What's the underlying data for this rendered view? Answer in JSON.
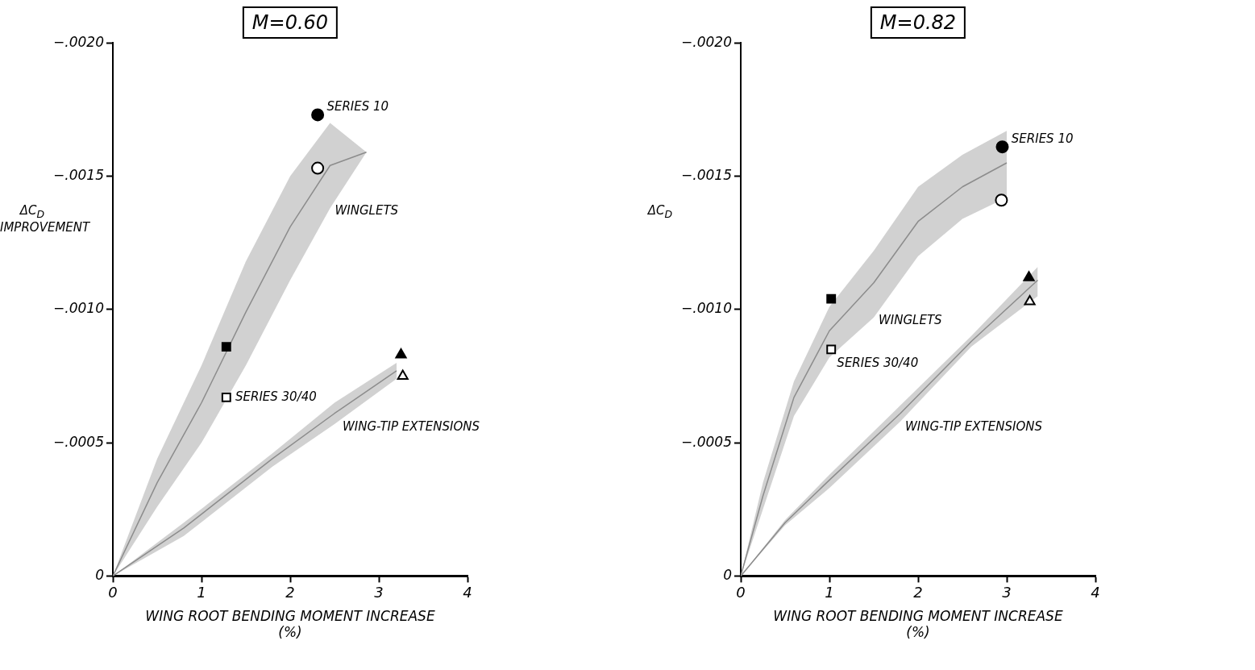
{
  "chart_data": [
    {
      "type": "scatter",
      "title": "M=0.60",
      "xlabel": "WING ROOT BENDING MOMENT INCREASE (%)",
      "ylabel": "ΔC$_{D}$ IMPROVEMENT",
      "xlim": [
        0,
        4
      ],
      "xticks": [
        0,
        1,
        2,
        3,
        4
      ],
      "ylim": [
        0,
        -0.002
      ],
      "yticks": [
        0,
        {
          "value": -0.0005,
          "label": "−.0005"
        },
        {
          "value": -0.001,
          "label": "−.0010"
        },
        {
          "value": -0.0015,
          "label": "−.0015"
        },
        {
          "value": -0.002,
          "label": "−.0020"
        }
      ],
      "grid": false,
      "legend": false,
      "series": [
        {
          "name": "WINGLETS",
          "type": "line",
          "color": "#8c8c8c",
          "x": [
            0,
            0.5,
            1,
            1.5,
            2,
            2.45,
            2.86
          ],
          "values": [
            0,
            -0.00035,
            -0.00065,
            -0.00099,
            -0.00131,
            -0.00154,
            -0.00159
          ],
          "upper": [
            0,
            -0.00044,
            -0.00079,
            -0.00118,
            -0.0015,
            -0.0017,
            -0.00159
          ],
          "lower": [
            0,
            -0.00026,
            -0.0005,
            -0.00079,
            -0.00111,
            -0.00138,
            -0.00159
          ]
        },
        {
          "name": "WING-TIP EXTENSIONS",
          "type": "line",
          "color": "#8c8c8c",
          "x": [
            0,
            0.8,
            1.8,
            2.5,
            3.2
          ],
          "values": [
            0,
            -0.00018,
            -0.00044,
            -0.00061,
            -0.00077
          ],
          "upper": [
            0,
            -0.0002,
            -0.00046,
            -0.00065,
            -0.0008
          ],
          "lower": [
            0,
            -0.00015,
            -0.00041,
            -0.00057,
            -0.00074
          ]
        },
        {
          "name": "SERIES 10",
          "type": "scatter",
          "marker": "circle",
          "color": "#000000",
          "colors": [
            "#000000",
            "#ffffff"
          ],
          "x": [
            2.31,
            2.31
          ],
          "values": [
            -0.00173,
            -0.00153
          ]
        },
        {
          "name": "SERIES 30/40",
          "type": "scatter",
          "marker": "square",
          "color": "#000000",
          "colors": [
            "#000000",
            "#ffffff"
          ],
          "x": [
            1.28,
            1.28
          ],
          "values": [
            -0.00086,
            -0.00067
          ]
        },
        {
          "type": "scatter",
          "marker": "triangle",
          "color": "#000000",
          "colors": [
            "#000000",
            "#ffffff"
          ],
          "x": [
            3.25,
            3.27
          ],
          "values": [
            -0.00083,
            -0.00075
          ]
        }
      ]
    },
    {
      "type": "scatter",
      "title": "M=0.82",
      "xlabel": "WING ROOT BENDING MOMENT INCREASE (%)",
      "ylabel": "ΔC$_{D}$",
      "xlim": [
        0,
        4
      ],
      "xticks": [
        0,
        1,
        2,
        3,
        4
      ],
      "ylim": [
        0,
        -0.002
      ],
      "yticks": [
        0,
        {
          "value": -0.0005,
          "label": "−.0005"
        },
        {
          "value": -0.001,
          "label": "−.0010"
        },
        {
          "value": -0.0015,
          "label": "−.0015"
        },
        {
          "value": -0.002,
          "label": "−.0020"
        }
      ],
      "grid": false,
      "legend": false,
      "series": [
        {
          "name": "WINGLETS",
          "type": "line",
          "color": "#8c8c8c",
          "x": [
            0,
            0.25,
            0.6,
            1,
            1.5,
            2,
            2.5,
            3
          ],
          "values": [
            0,
            -0.0003,
            -0.00067,
            -0.00092,
            -0.0011,
            -0.00133,
            -0.00146,
            -0.00155
          ],
          "upper": [
            0,
            -0.00035,
            -0.00073,
            -0.00101,
            -0.00122,
            -0.00146,
            -0.00158,
            -0.00167
          ],
          "lower": [
            0,
            -0.00025,
            -0.0006,
            -0.00082,
            -0.00097,
            -0.0012,
            -0.00134,
            -0.00142
          ]
        },
        {
          "name": "WING-TIP EXTENSIONS",
          "type": "line",
          "color": "#8c8c8c",
          "x": [
            0,
            0.5,
            1,
            1.8,
            2.6,
            3.35
          ],
          "values": [
            0,
            -0.0002,
            -0.00036,
            -0.00061,
            -0.00088,
            -0.00111
          ],
          "upper": [
            0,
            -0.00021,
            -0.00038,
            -0.00064,
            -0.0009,
            -0.00116
          ],
          "lower": [
            0,
            -0.00019,
            -0.00033,
            -0.00058,
            -0.00086,
            -0.00105
          ]
        },
        {
          "name": "SERIES 10",
          "type": "scatter",
          "marker": "circle",
          "color": "#000000",
          "colors": [
            "#000000",
            "#ffffff"
          ],
          "x": [
            2.95,
            2.94
          ],
          "values": [
            -0.00161,
            -0.00141
          ]
        },
        {
          "name": "SERIES 30/40",
          "type": "scatter",
          "marker": "square",
          "color": "#000000",
          "colors": [
            "#000000",
            "#ffffff"
          ],
          "x": [
            1.02,
            1.02
          ],
          "values": [
            -0.00104,
            -0.00085
          ]
        },
        {
          "type": "scatter",
          "marker": "triangle",
          "color": "#000000",
          "colors": [
            "#000000",
            "#ffffff"
          ],
          "x": [
            3.25,
            3.26
          ],
          "values": [
            -0.00112,
            -0.00103
          ]
        }
      ]
    }
  ]
}
